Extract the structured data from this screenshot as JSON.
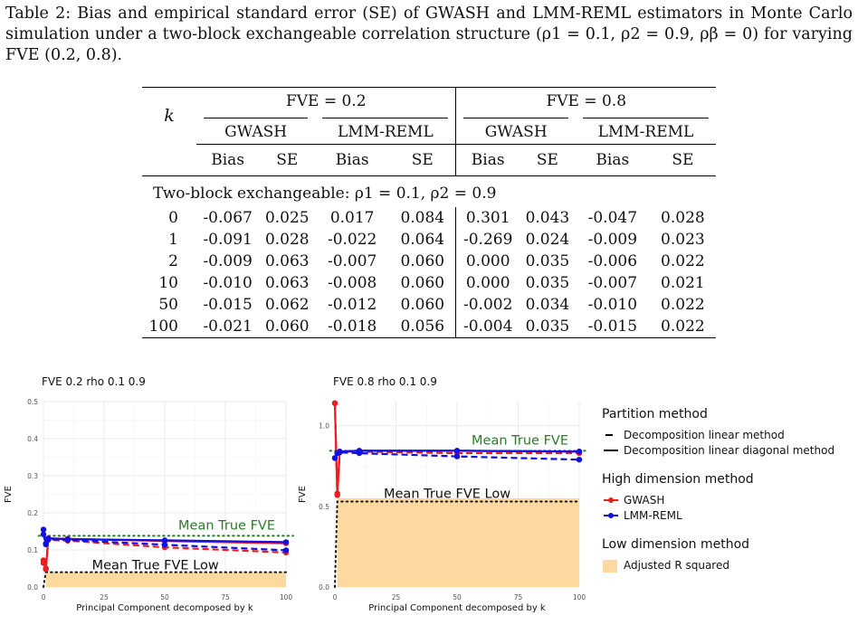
{
  "caption": "Table 2: Bias and empirical standard error (SE) of GWASH and LMM-REML estimators in Monte Carlo simulation under a two-block exchangeable correlation structure (ρ1 = 0.1, ρ2 = 0.9, ρβ = 0) for varying FVE (0.2, 0.8).",
  "table": {
    "row_header": "k",
    "fve_groups": [
      "FVE = 0.2",
      "FVE = 0.8"
    ],
    "methods": [
      "GWASH",
      "LMM-REML",
      "GWASH",
      "LMM-REML"
    ],
    "stats": [
      "Bias",
      "SE",
      "Bias",
      "SE",
      "Bias",
      "SE",
      "Bias",
      "SE"
    ],
    "group_label": "Two-block exchangeable:  ρ1 = 0.1,  ρ2 = 0.9",
    "rows": [
      {
        "k": "0",
        "cells": [
          "-0.067",
          "0.025",
          "0.017",
          "0.084",
          "0.301",
          "0.043",
          "-0.047",
          "0.028"
        ]
      },
      {
        "k": "1",
        "cells": [
          "-0.091",
          "0.028",
          "-0.022",
          "0.064",
          "-0.269",
          "0.024",
          "-0.009",
          "0.023"
        ]
      },
      {
        "k": "2",
        "cells": [
          "-0.009",
          "0.063",
          "-0.007",
          "0.060",
          "0.000",
          "0.035",
          "-0.006",
          "0.022"
        ]
      },
      {
        "k": "10",
        "cells": [
          "-0.010",
          "0.063",
          "-0.008",
          "0.060",
          "0.000",
          "0.035",
          "-0.007",
          "0.021"
        ]
      },
      {
        "k": "50",
        "cells": [
          "-0.015",
          "0.062",
          "-0.012",
          "0.060",
          "-0.002",
          "0.034",
          "-0.010",
          "0.022"
        ]
      },
      {
        "k": "100",
        "cells": [
          "-0.021",
          "0.060",
          "-0.018",
          "0.056",
          "-0.004",
          "0.035",
          "-0.015",
          "0.022"
        ]
      }
    ]
  },
  "chart_data": [
    {
      "type": "line",
      "title": "FVE 0.2 rho 0.1 0.9",
      "xlabel": "Principal Component decomposed by k",
      "ylabel": "FVE",
      "xlim": [
        0,
        100
      ],
      "ylim": [
        0,
        0.5
      ],
      "x_ticks": [
        "0",
        "25",
        "50",
        "75",
        "100"
      ],
      "y_ticks": [
        "0.0",
        "0.1",
        "0.2",
        "0.3",
        "0.4",
        "0.5"
      ],
      "x": [
        0,
        1,
        2,
        10,
        50,
        100
      ],
      "series": [
        {
          "name": "GWASH",
          "line": "solid",
          "color": "#ee1c1c",
          "values": [
            0.072,
            0.048,
            0.131,
            0.13,
            0.124,
            0.118
          ]
        },
        {
          "name": "GWASH",
          "line": "dashed",
          "color": "#ee1c1c",
          "values": [
            0.065,
            0.05,
            0.127,
            0.125,
            0.107,
            0.093
          ]
        },
        {
          "name": "LMM-REML",
          "line": "solid",
          "color": "#1010e0",
          "values": [
            0.155,
            0.117,
            0.131,
            0.129,
            0.126,
            0.121
          ]
        },
        {
          "name": "LMM-REML",
          "line": "dashed",
          "color": "#1010e0",
          "values": [
            0.142,
            0.115,
            0.129,
            0.127,
            0.114,
            0.099
          ]
        }
      ],
      "mean_true_fve": 0.138,
      "mean_true_fve_low": 0.04,
      "adjusted_r_squared": 0.04,
      "annotations": [
        "Mean True FVE",
        "Mean True FVE Low"
      ]
    },
    {
      "type": "line",
      "title": "FVE 0.8 rho 0.1 0.9",
      "xlabel": "Principal Component decomposed by k",
      "ylabel": "FVE",
      "xlim": [
        0,
        100
      ],
      "ylim": [
        0,
        1.15
      ],
      "x_ticks": [
        "0",
        "25",
        "50",
        "75",
        "100"
      ],
      "y_ticks": [
        "0.0",
        "0.5",
        "1.0"
      ],
      "x": [
        0,
        1,
        2,
        10,
        50,
        100
      ],
      "series": [
        {
          "name": "GWASH",
          "line": "solid",
          "color": "#ee1c1c",
          "values": [
            1.14,
            0.57,
            0.84,
            0.845,
            0.845,
            0.84
          ]
        },
        {
          "name": "GWASH",
          "line": "dashed",
          "color": "#ee1c1c",
          "values": [
            1.14,
            0.58,
            0.84,
            0.84,
            0.83,
            0.83
          ]
        },
        {
          "name": "LMM-REML",
          "line": "solid",
          "color": "#1010e0",
          "values": [
            0.8,
            0.83,
            0.84,
            0.845,
            0.845,
            0.84
          ]
        },
        {
          "name": "LMM-REML",
          "line": "dashed",
          "color": "#1010e0",
          "values": [
            0.8,
            0.83,
            0.835,
            0.83,
            0.81,
            0.79
          ]
        }
      ],
      "mean_true_fve": 0.845,
      "mean_true_fve_low": 0.53,
      "adjusted_r_squared": 0.55,
      "annotations": [
        "Mean True FVE",
        "Mean True FVE Low"
      ]
    }
  ],
  "legend": {
    "partition_title": "Partition method",
    "partition_items": [
      "Decomposition linear method",
      "Decomposition linear diagonal method"
    ],
    "high_title": "High dimension method",
    "high_items": [
      {
        "label": "GWASH",
        "color": "#ee1c1c"
      },
      {
        "label": "LMM-REML",
        "color": "#1010e0"
      }
    ],
    "low_title": "Low dimension method",
    "low_items": [
      {
        "label": "Adjusted R squared",
        "color": "#fdd9a0"
      }
    ]
  },
  "colors": {
    "mean_true": "#2a7a2a",
    "mean_low": "#111111",
    "fill": "#fdd9a0",
    "panel_bg": "#ffffff",
    "grid": "#ebebeb"
  }
}
